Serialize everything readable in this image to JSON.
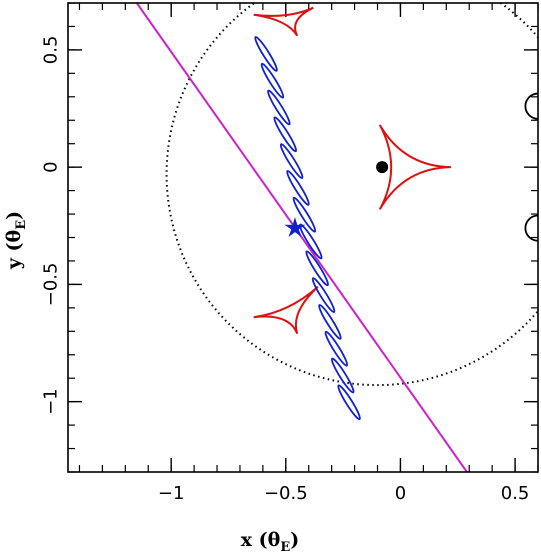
{
  "chart_data": {
    "type": "line",
    "xlabel": "x (θ",
    "xlabel_sub": "E",
    "xlabel_close": ")",
    "ylabel": "y (θ",
    "ylabel_sub": "E",
    "ylabel_close": ")",
    "xlim": [
      -1.45,
      0.6
    ],
    "ylim": [
      -1.3,
      0.7
    ],
    "xticks": [
      {
        "value": -1,
        "label": "−1"
      },
      {
        "value": -0.5,
        "label": "−0.5"
      },
      {
        "value": 0,
        "label": "0"
      },
      {
        "value": 0.5,
        "label": "0.5"
      }
    ],
    "yticks": [
      {
        "value": -1,
        "label": "−1"
      },
      {
        "value": -0.5,
        "label": "−0.5"
      },
      {
        "value": 0,
        "label": "0"
      },
      {
        "value": 0.5,
        "label": "0.5"
      }
    ],
    "minor_step": 0.1,
    "colors": {
      "trajectory": "#cc22cc",
      "caustic": "#dd1111",
      "image_track": "#1122cc",
      "circle": "#000000",
      "lens": "#000000",
      "source_marker": "#1122cc"
    },
    "trajectory": {
      "p1": [
        -1.15,
        0.7
      ],
      "p2": [
        0.29,
        -1.3
      ]
    },
    "einstein_circle": {
      "center": [
        -0.1,
        -0.03
      ],
      "radius": 0.92
    },
    "lens": {
      "x": -0.08,
      "y": 0.0
    },
    "source": {
      "x": -0.46,
      "y": -0.26
    },
    "caustics": [
      {
        "name": "central",
        "cusps": [
          [
            -0.09,
            0.18
          ],
          [
            0.22,
            0.0
          ],
          [
            -0.09,
            -0.18
          ]
        ],
        "bulge": 0.6
      },
      {
        "name": "upper",
        "cusps": [
          [
            -0.38,
            0.68
          ],
          [
            -0.45,
            0.56
          ],
          [
            -0.64,
            0.65
          ]
        ],
        "bulge": 0.6
      },
      {
        "name": "lower",
        "cusps": [
          [
            -0.36,
            -0.51
          ],
          [
            -0.45,
            -0.71
          ],
          [
            -0.64,
            -0.64
          ]
        ],
        "bulge": 0.6
      }
    ],
    "image_loops": {
      "start": [
        -0.6,
        0.54
      ],
      "end": [
        -0.21,
        -1.06
      ],
      "count": 14,
      "half_length": 0.085,
      "half_width": 0.013
    },
    "edge_arcs": [
      {
        "center": [
          0.6,
          0.26
        ],
        "radius": 0.055
      },
      {
        "center": [
          0.6,
          -0.26
        ],
        "radius": 0.055
      }
    ]
  }
}
